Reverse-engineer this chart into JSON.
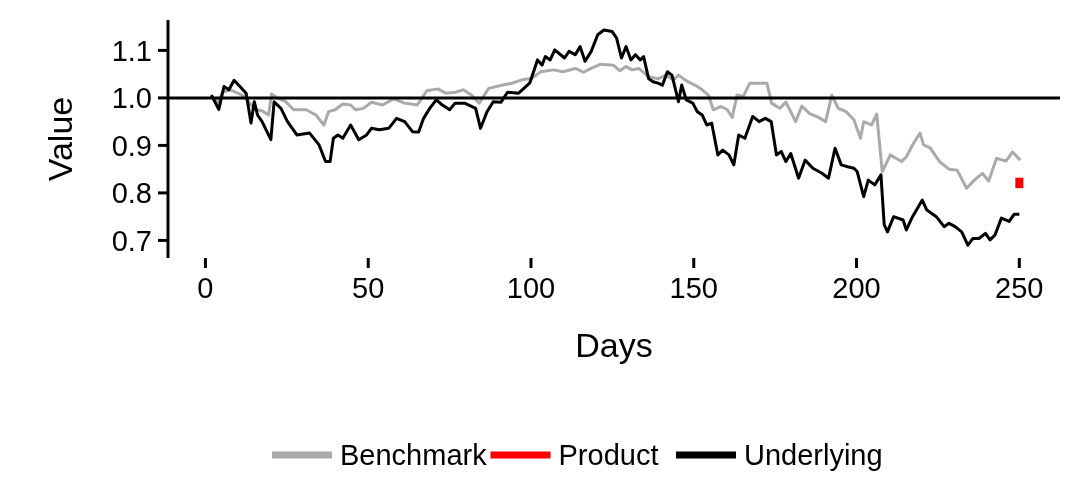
{
  "chart_data": {
    "type": "line",
    "xlabel": "Days",
    "ylabel": "Value",
    "xlim": [
      -11.5,
      262.5
    ],
    "ylim": [
      0.663,
      1.164
    ],
    "xticks": [
      0,
      50,
      100,
      150,
      200,
      250
    ],
    "yticks": [
      {
        "value": 0.7,
        "label": "0.7"
      },
      {
        "value": 0.8,
        "label": "0.8"
      },
      {
        "value": 0.9,
        "label": "0.9"
      },
      {
        "value": 1.0,
        "label": "1.0"
      },
      {
        "value": 1.1,
        "label": "1.1"
      }
    ],
    "grid": false,
    "legend": "bottom",
    "line_style": "solid",
    "marker": "none",
    "ref_lines": [
      {
        "axis": "y",
        "value": 1.0,
        "color": "#000000"
      }
    ],
    "series": [
      {
        "name": "Benchmark",
        "color": "#aaaaaa",
        "x": [
          1.8,
          3.8,
          5.3,
          7.7,
          10.6,
          12.1,
          13.5,
          15.5,
          17.4,
          19.4,
          20.3,
          22.3,
          24.7,
          27.1,
          31,
          33.9,
          36.4,
          37.8,
          39.8,
          42.2,
          44.6,
          46.1,
          48.5,
          51,
          54.4,
          57.8,
          61.2,
          65.1,
          68,
          71.4,
          73.8,
          76.7,
          79.2,
          81.7,
          84.1,
          87,
          91.3,
          94.2,
          97.2,
          100.1,
          103,
          106.9,
          109.8,
          113.7,
          116.1,
          118.5,
          121.4,
          125.3,
          127.3,
          129.2,
          131.1,
          133.1,
          136.1,
          139,
          141.4,
          143.8,
          145.3,
          147.7,
          150.6,
          152.6,
          154.5,
          156,
          158.4,
          160.3,
          161.8,
          163.3,
          165.2,
          167.2,
          169.6,
          172.5,
          173.9,
          176.4,
          178.3,
          181.3,
          183.2,
          185.6,
          188,
          190.5,
          192.4,
          194.4,
          196.8,
          199.2,
          201.2,
          202.2,
          204.6,
          206.2,
          207.9,
          210.4,
          213.8,
          215.3,
          217.2,
          219.5,
          220.6,
          222.6,
          225.5,
          228.4,
          230.9,
          233.8,
          236.2,
          238.7,
          240.6,
          243,
          245.9,
          247.9,
          250.3
        ],
        "values": [
          1.003,
          0.991,
          1.012,
          1.017,
          1.008,
          1.003,
          0.989,
          0.975,
          0.973,
          0.964,
          1.008,
          0.999,
          0.992,
          0.975,
          0.975,
          0.964,
          0.943,
          0.971,
          0.975,
          0.987,
          0.985,
          0.975,
          0.978,
          0.991,
          0.985,
          0.998,
          0.989,
          0.985,
          1.015,
          1.019,
          1.01,
          1.012,
          1.017,
          1.006,
          0.989,
          1.02,
          1.027,
          1.031,
          1.038,
          1.041,
          1.055,
          1.059,
          1.055,
          1.062,
          1.054,
          1.062,
          1.071,
          1.069,
          1.057,
          1.066,
          1.059,
          1.062,
          1.045,
          1.04,
          1.048,
          1.038,
          1.048,
          1.036,
          1.026,
          1.017,
          1.006,
          0.975,
          0.982,
          0.975,
          0.959,
          1.006,
          1.003,
          1.031,
          1.031,
          1.031,
          0.989,
          0.978,
          0.991,
          0.95,
          0.983,
          0.967,
          0.96,
          0.95,
          1.006,
          0.978,
          0.971,
          0.954,
          0.915,
          0.95,
          0.943,
          0.966,
          0.845,
          0.88,
          0.866,
          0.876,
          0.901,
          0.926,
          0.901,
          0.895,
          0.866,
          0.85,
          0.848,
          0.81,
          0.827,
          0.841,
          0.825,
          0.873,
          0.867,
          0.886,
          0.869
        ]
      },
      {
        "name": "Product",
        "color": "#ff0000",
        "x": [
          250,
          250
        ],
        "values": [
          0.832,
          0.81
        ]
      },
      {
        "name": "Underlying",
        "color": "#000000",
        "x": [
          1.8,
          4.1,
          5.7,
          7.2,
          8.8,
          10.6,
          12.5,
          14,
          15,
          16,
          17.4,
          18.9,
          20.1,
          21.1,
          23.2,
          25.2,
          28.1,
          32,
          34.9,
          36.9,
          38.3,
          39.3,
          40.7,
          42.2,
          44.6,
          47.1,
          49.5,
          51,
          53.4,
          56.3,
          58.7,
          61.2,
          63.6,
          65.5,
          67,
          68.9,
          70.9,
          72.8,
          75,
          76.7,
          79.6,
          83,
          84.5,
          86.5,
          88.4,
          90.8,
          92.8,
          96.2,
          99.6,
          102,
          103.4,
          104.4,
          105.9,
          107.3,
          110.3,
          111.7,
          113.6,
          115.1,
          116.6,
          118.5,
          120.5,
          122.4,
          124.9,
          126.3,
          127.8,
          129.2,
          130.7,
          132.1,
          133.6,
          134.6,
          136.1,
          137.5,
          139,
          140.4,
          141.9,
          143.3,
          145.3,
          146.3,
          147.7,
          149.7,
          151.1,
          152.6,
          154,
          155.5,
          157.4,
          158.9,
          160.8,
          162.3,
          163.8,
          165.7,
          168.1,
          170.1,
          172,
          173.8,
          175.4,
          176.9,
          178.3,
          179.8,
          182.2,
          184.2,
          186.6,
          189.5,
          191.4,
          193.4,
          195.3,
          197.3,
          199.2,
          200.2,
          202.2,
          203.6,
          205.6,
          207.5,
          208.5,
          209.5,
          211.4,
          214.3,
          215.3,
          217.2,
          220.2,
          221.6,
          224.5,
          226.9,
          228.4,
          230.3,
          232.3,
          234.2,
          235.7,
          237.6,
          239.6,
          241,
          242.5,
          244.5,
          246.9,
          248.4,
          250
        ],
        "values": [
          1.006,
          0.976,
          1.024,
          1.017,
          1.037,
          1.024,
          1.01,
          0.947,
          0.992,
          0.964,
          0.95,
          0.929,
          0.912,
          0.992,
          0.978,
          0.95,
          0.922,
          0.926,
          0.901,
          0.866,
          0.866,
          0.915,
          0.922,
          0.915,
          0.943,
          0.912,
          0.922,
          0.936,
          0.933,
          0.936,
          0.957,
          0.95,
          0.929,
          0.928,
          0.957,
          0.978,
          0.996,
          0.985,
          0.975,
          0.989,
          0.989,
          0.978,
          0.936,
          0.971,
          0.992,
          0.991,
          1.012,
          1.01,
          1.031,
          1.08,
          1.069,
          1.087,
          1.08,
          1.101,
          1.084,
          1.098,
          1.091,
          1.108,
          1.077,
          1.098,
          1.133,
          1.143,
          1.14,
          1.126,
          1.084,
          1.108,
          1.08,
          1.091,
          1.08,
          1.087,
          1.041,
          1.034,
          1.031,
          1.027,
          1.055,
          1.048,
          0.992,
          1.027,
          0.996,
          0.989,
          0.971,
          0.964,
          0.943,
          0.947,
          0.88,
          0.89,
          0.88,
          0.859,
          0.922,
          0.915,
          0.961,
          0.95,
          0.957,
          0.95,
          0.88,
          0.887,
          0.866,
          0.883,
          0.831,
          0.869,
          0.852,
          0.841,
          0.831,
          0.894,
          0.859,
          0.855,
          0.852,
          0.845,
          0.792,
          0.827,
          0.817,
          0.838,
          0.733,
          0.718,
          0.75,
          0.743,
          0.722,
          0.75,
          0.785,
          0.764,
          0.75,
          0.729,
          0.736,
          0.729,
          0.718,
          0.69,
          0.704,
          0.704,
          0.715,
          0.701,
          0.711,
          0.747,
          0.74,
          0.755,
          0.755
        ]
      }
    ]
  }
}
